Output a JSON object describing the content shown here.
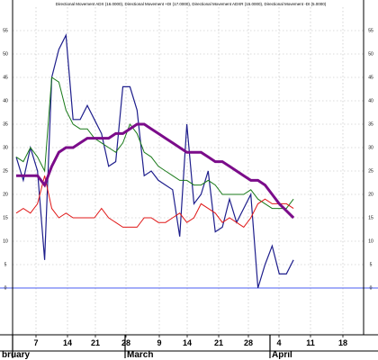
{
  "chart_data": {
    "type": "line",
    "title": "Directional Movement ADX (16.0000), Directional Movement +DI (17.0000), Directional Movement ADXR (15.0000), Directional Movement -DI (5.0000)",
    "x_ticks": [
      "7",
      "14",
      "21",
      "28",
      "9",
      "14",
      "21",
      "28",
      "4",
      "11",
      "18"
    ],
    "months": [
      "bruary",
      "March",
      "April"
    ],
    "ylim": [
      -10,
      60
    ],
    "y_ticks": [
      0,
      5,
      10,
      15,
      20,
      25,
      30,
      35,
      40,
      45,
      50,
      55
    ],
    "grid": true,
    "legend": "none",
    "zero_line_color": "#4a5cf0",
    "x": [
      0,
      1,
      2,
      3,
      4,
      5,
      6,
      7,
      8,
      9,
      10,
      11,
      12,
      13,
      14,
      15,
      16,
      17,
      18,
      19,
      20,
      21,
      22,
      23,
      24,
      25,
      26,
      27,
      28,
      29,
      30,
      31,
      32,
      33,
      34,
      35,
      36,
      37,
      38,
      39
    ],
    "series": [
      {
        "color": "#1e1e8c",
        "width": 1.2,
        "values": [
          28,
          23,
          30,
          25,
          6,
          45,
          51,
          54,
          36,
          36,
          39,
          36,
          33,
          26,
          27,
          43,
          43,
          38,
          24,
          25,
          23,
          22,
          21,
          11,
          35,
          18,
          20,
          25,
          12,
          13,
          19,
          14,
          17,
          20,
          0,
          5,
          9,
          3,
          3,
          6
        ]
      },
      {
        "color": "#1a7a1a",
        "width": 1.0,
        "values": [
          28,
          27,
          30,
          28,
          25,
          45,
          44,
          38,
          35,
          34,
          34,
          32,
          31,
          30,
          29,
          31,
          35,
          33,
          29,
          28,
          26,
          25,
          24,
          23,
          23,
          22,
          22,
          23,
          22,
          20,
          20,
          20,
          20,
          21,
          19,
          18,
          17,
          17,
          17,
          19
        ]
      },
      {
        "color": "#e01818",
        "width": 1.0,
        "values": [
          16,
          17,
          16,
          18,
          24,
          17,
          15,
          16,
          15,
          15,
          15,
          15,
          17,
          15,
          14,
          13,
          13,
          13,
          15,
          15,
          14,
          14,
          15,
          16,
          14,
          15,
          18,
          17,
          16,
          14,
          15,
          14,
          13,
          15,
          18,
          19,
          18,
          18,
          18,
          17
        ]
      },
      {
        "color": "#7b0c8a",
        "width": 3.0,
        "values": [
          24,
          24,
          24,
          24,
          22,
          26,
          29,
          30,
          30,
          31,
          32,
          32,
          32,
          32,
          33,
          33,
          34,
          35,
          35,
          34,
          33,
          32,
          31,
          30,
          29,
          29,
          29,
          28,
          27,
          27,
          26,
          25,
          24,
          23,
          23,
          22,
          20,
          18,
          16.5,
          15
        ]
      }
    ]
  }
}
